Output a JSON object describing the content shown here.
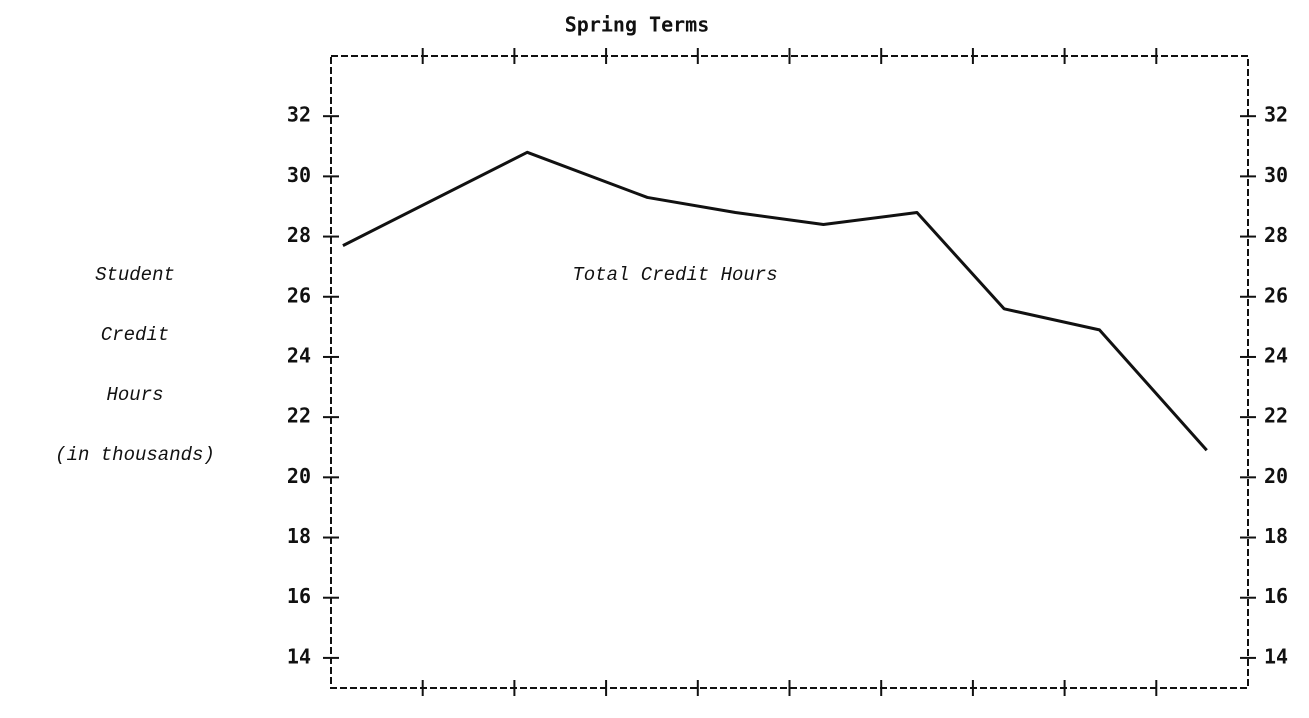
{
  "chart_data": {
    "type": "line",
    "title": "Spring Terms",
    "ylabel": [
      "Student",
      "Credit",
      "Hours",
      "(in thousands)"
    ],
    "annotation": "Total Credit Hours",
    "x": [
      0.13,
      2.14,
      3.45,
      4.41,
      5.37,
      6.39,
      7.34,
      8.38,
      9.55
    ],
    "series": [
      {
        "color": "#111111",
        "values": [
          27.7,
          30.8,
          29.3,
          28.8,
          28.4,
          28.8,
          25.6,
          24.9,
          20.9
        ]
      }
    ],
    "xlim": [
      0,
      10
    ],
    "xticks": [
      1,
      2,
      3,
      4,
      5,
      6,
      7,
      8,
      9
    ],
    "ylim": [
      13,
      34
    ],
    "yticks": [
      14,
      16,
      18,
      20,
      22,
      24,
      26,
      28,
      30,
      32
    ],
    "grid": false
  }
}
